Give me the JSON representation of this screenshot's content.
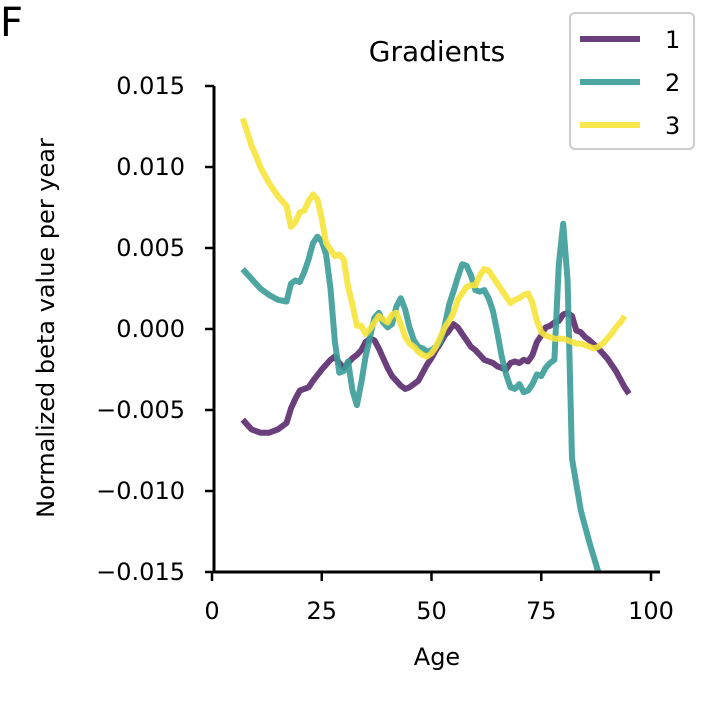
{
  "panel_label": "F",
  "chart_data": {
    "type": "line",
    "title": "Gradients",
    "xlabel": "Age",
    "ylabel": "Normalized beta value per year",
    "xlim": [
      0,
      102
    ],
    "ylim": [
      -0.015,
      0.015
    ],
    "xticks": [
      0,
      25,
      50,
      75,
      100
    ],
    "xtick_labels": [
      "0",
      "25",
      "50",
      "75",
      "100"
    ],
    "yticks": [
      0.015,
      0.01,
      0.005,
      0.0,
      -0.005,
      -0.01,
      -0.015
    ],
    "ytick_labels": [
      "0.015",
      "0.010",
      "0.005",
      "0.000",
      "−0.005",
      "−0.010",
      "−0.015"
    ],
    "legend_position": "top-right",
    "grid": false,
    "series": [
      {
        "name": "1",
        "color": "#5a2a6e",
        "points": [
          [
            7,
            -0.0056
          ],
          [
            9,
            -0.0062
          ],
          [
            11,
            -0.0064
          ],
          [
            13,
            -0.0064
          ],
          [
            15,
            -0.0062
          ],
          [
            17,
            -0.0058
          ],
          [
            18,
            -0.0049
          ],
          [
            19,
            -0.0043
          ],
          [
            20,
            -0.0038
          ],
          [
            21,
            -0.0037
          ],
          [
            22,
            -0.0036
          ],
          [
            23,
            -0.0032
          ],
          [
            25,
            -0.0025
          ],
          [
            27,
            -0.0019
          ],
          [
            28,
            -0.0017
          ],
          [
            29,
            -0.0021
          ],
          [
            30,
            -0.0024
          ],
          [
            31,
            -0.0021
          ],
          [
            32,
            -0.0018
          ],
          [
            33,
            -0.0016
          ],
          [
            34,
            -0.0013
          ],
          [
            35,
            -0.0008
          ],
          [
            36,
            -0.0006
          ],
          [
            37,
            -0.0007
          ],
          [
            38,
            -0.0012
          ],
          [
            39,
            -0.0018
          ],
          [
            40,
            -0.0024
          ],
          [
            41,
            -0.0029
          ],
          [
            42,
            -0.0032
          ],
          [
            43,
            -0.0035
          ],
          [
            44,
            -0.0037
          ],
          [
            45,
            -0.0036
          ],
          [
            46,
            -0.0034
          ],
          [
            47,
            -0.0032
          ],
          [
            48,
            -0.0027
          ],
          [
            49,
            -0.0022
          ],
          [
            50,
            -0.0018
          ],
          [
            51,
            -0.0013
          ],
          [
            52,
            -0.0009
          ],
          [
            53,
            -0.0004
          ],
          [
            54,
            -0.0001
          ],
          [
            55,
            0.0003
          ],
          [
            56,
            0.0001
          ],
          [
            57,
            -0.0003
          ],
          [
            58,
            -0.0007
          ],
          [
            59,
            -0.0011
          ],
          [
            60,
            -0.0013
          ],
          [
            61,
            -0.0016
          ],
          [
            62,
            -0.0019
          ],
          [
            63,
            -0.002
          ],
          [
            64,
            -0.0021
          ],
          [
            65,
            -0.0023
          ],
          [
            66,
            -0.0024
          ],
          [
            67,
            -0.0025
          ],
          [
            68,
            -0.0021
          ],
          [
            69,
            -0.002
          ],
          [
            70,
            -0.0021
          ],
          [
            71,
            -0.0019
          ],
          [
            72,
            -0.002
          ],
          [
            73,
            -0.0016
          ],
          [
            74,
            -0.0008
          ],
          [
            75,
            -0.0004
          ],
          [
            76,
            0.0001
          ],
          [
            77,
            0.0002
          ],
          [
            78,
            0.0004
          ],
          [
            79,
            0.0005
          ],
          [
            80,
            0.0009
          ],
          [
            81,
            0.001
          ],
          [
            82,
            0.0008
          ],
          [
            83,
            -0.0001
          ],
          [
            84,
            -0.0002
          ],
          [
            85,
            -0.0005
          ],
          [
            86,
            -0.0007
          ],
          [
            88,
            -0.0012
          ],
          [
            90,
            -0.0018
          ],
          [
            92,
            -0.0026
          ],
          [
            94,
            -0.0036
          ],
          [
            95,
            -0.004
          ]
        ]
      },
      {
        "name": "2",
        "color": "#3a9c97",
        "points": [
          [
            7,
            0.0037
          ],
          [
            9,
            0.0031
          ],
          [
            11,
            0.0025
          ],
          [
            13,
            0.0021
          ],
          [
            15,
            0.0018
          ],
          [
            17,
            0.0017
          ],
          [
            18,
            0.0028
          ],
          [
            19,
            0.003
          ],
          [
            20,
            0.0029
          ],
          [
            21,
            0.0035
          ],
          [
            22,
            0.0043
          ],
          [
            23,
            0.0053
          ],
          [
            24,
            0.0057
          ],
          [
            25,
            0.0054
          ],
          [
            26,
            0.0046
          ],
          [
            27,
            0.0025
          ],
          [
            28,
            -0.0008
          ],
          [
            29,
            -0.0027
          ],
          [
            30,
            -0.0026
          ],
          [
            31,
            -0.002
          ],
          [
            32,
            -0.0038
          ],
          [
            33,
            -0.0047
          ],
          [
            34,
            -0.0033
          ],
          [
            35,
            -0.0017
          ],
          [
            36,
            -0.0005
          ],
          [
            37,
            0.0007
          ],
          [
            38,
            0.001
          ],
          [
            39,
            0.0004
          ],
          [
            40,
            0.0001
          ],
          [
            41,
            0.0003
          ],
          [
            42,
            0.0014
          ],
          [
            43,
            0.0019
          ],
          [
            44,
            0.0012
          ],
          [
            45,
            0.0001
          ],
          [
            46,
            -0.0007
          ],
          [
            47,
            -0.0011
          ],
          [
            48,
            -0.0012
          ],
          [
            49,
            -0.0014
          ],
          [
            50,
            -0.0013
          ],
          [
            51,
            -0.0011
          ],
          [
            52,
            -0.0008
          ],
          [
            53,
            0.0002
          ],
          [
            54,
            0.0015
          ],
          [
            55,
            0.0023
          ],
          [
            56,
            0.0032
          ],
          [
            57,
            0.004
          ],
          [
            58,
            0.0039
          ],
          [
            59,
            0.0033
          ],
          [
            60,
            0.0024
          ],
          [
            61,
            0.0023
          ],
          [
            62,
            0.0024
          ],
          [
            63,
            0.0019
          ],
          [
            64,
            0.0011
          ],
          [
            65,
            -0.0002
          ],
          [
            66,
            -0.0017
          ],
          [
            67,
            -0.0028
          ],
          [
            68,
            -0.0036
          ],
          [
            69,
            -0.0037
          ],
          [
            70,
            -0.0034
          ],
          [
            71,
            -0.0039
          ],
          [
            72,
            -0.0038
          ],
          [
            73,
            -0.0034
          ],
          [
            74,
            -0.0028
          ],
          [
            75,
            -0.0029
          ],
          [
            76,
            -0.0024
          ],
          [
            77,
            -0.0021
          ],
          [
            78,
            -0.0019
          ],
          [
            79,
            0.004
          ],
          [
            80,
            0.0065
          ],
          [
            81,
            0.003
          ],
          [
            82,
            -0.008
          ],
          [
            84,
            -0.0112
          ],
          [
            86,
            -0.0132
          ],
          [
            88,
            -0.015
          ]
        ]
      },
      {
        "name": "3",
        "color": "#f7e33a",
        "points": [
          [
            7,
            0.013
          ],
          [
            8,
            0.0122
          ],
          [
            9,
            0.0113
          ],
          [
            10,
            0.0107
          ],
          [
            11,
            0.01
          ],
          [
            12,
            0.0095
          ],
          [
            13,
            0.009
          ],
          [
            14,
            0.0086
          ],
          [
            15,
            0.0082
          ],
          [
            16,
            0.0079
          ],
          [
            17,
            0.0076
          ],
          [
            18,
            0.0063
          ],
          [
            19,
            0.0066
          ],
          [
            20,
            0.0072
          ],
          [
            21,
            0.0073
          ],
          [
            22,
            0.0079
          ],
          [
            23,
            0.0083
          ],
          [
            24,
            0.008
          ],
          [
            25,
            0.0068
          ],
          [
            26,
            0.0053
          ],
          [
            27,
            0.0049
          ],
          [
            28,
            0.0045
          ],
          [
            29,
            0.0046
          ],
          [
            30,
            0.0043
          ],
          [
            31,
            0.0026
          ],
          [
            32,
            0.0015
          ],
          [
            33,
            0.0002
          ],
          [
            34,
            0.0002
          ],
          [
            35,
            -0.0003
          ],
          [
            36,
            0.0
          ],
          [
            37,
            0.0004
          ],
          [
            38,
            0.0008
          ],
          [
            39,
            0.0006
          ],
          [
            40,
            0.0004
          ],
          [
            41,
            0.0009
          ],
          [
            42,
            0.001
          ],
          [
            43,
            0.0003
          ],
          [
            44,
            -0.0005
          ],
          [
            45,
            -0.0009
          ],
          [
            46,
            -0.0011
          ],
          [
            47,
            -0.0014
          ],
          [
            48,
            -0.0016
          ],
          [
            49,
            -0.0017
          ],
          [
            50,
            -0.0015
          ],
          [
            51,
            -0.0011
          ],
          [
            52,
            -0.0005
          ],
          [
            53,
            0.0001
          ],
          [
            54,
            0.0005
          ],
          [
            55,
            0.001
          ],
          [
            56,
            0.0018
          ],
          [
            57,
            0.0022
          ],
          [
            58,
            0.0026
          ],
          [
            59,
            0.0027
          ],
          [
            60,
            0.0027
          ],
          [
            61,
            0.0033
          ],
          [
            62,
            0.0037
          ],
          [
            63,
            0.0036
          ],
          [
            64,
            0.0032
          ],
          [
            65,
            0.0028
          ],
          [
            66,
            0.0024
          ],
          [
            67,
            0.002
          ],
          [
            68,
            0.0016
          ],
          [
            69,
            0.0018
          ],
          [
            70,
            0.0019
          ],
          [
            71,
            0.0021
          ],
          [
            72,
            0.0022
          ],
          [
            73,
            0.0016
          ],
          [
            74,
            0.0005
          ],
          [
            75,
            -0.0002
          ],
          [
            76,
            -0.0004
          ],
          [
            77,
            -0.0005
          ],
          [
            78,
            -0.0006
          ],
          [
            79,
            -0.0006
          ],
          [
            80,
            -0.0006
          ],
          [
            81,
            -0.0007
          ],
          [
            82,
            -0.0008
          ],
          [
            83,
            -0.0009
          ],
          [
            84,
            -0.0009
          ],
          [
            85,
            -0.001
          ],
          [
            86,
            -0.0011
          ],
          [
            87,
            -0.0012
          ],
          [
            88,
            -0.0011
          ],
          [
            89,
            -0.0009
          ],
          [
            90,
            -0.0006
          ],
          [
            91,
            -0.0003
          ],
          [
            92,
            0.0001
          ],
          [
            93,
            0.0004
          ],
          [
            94,
            0.0008
          ]
        ]
      }
    ]
  }
}
